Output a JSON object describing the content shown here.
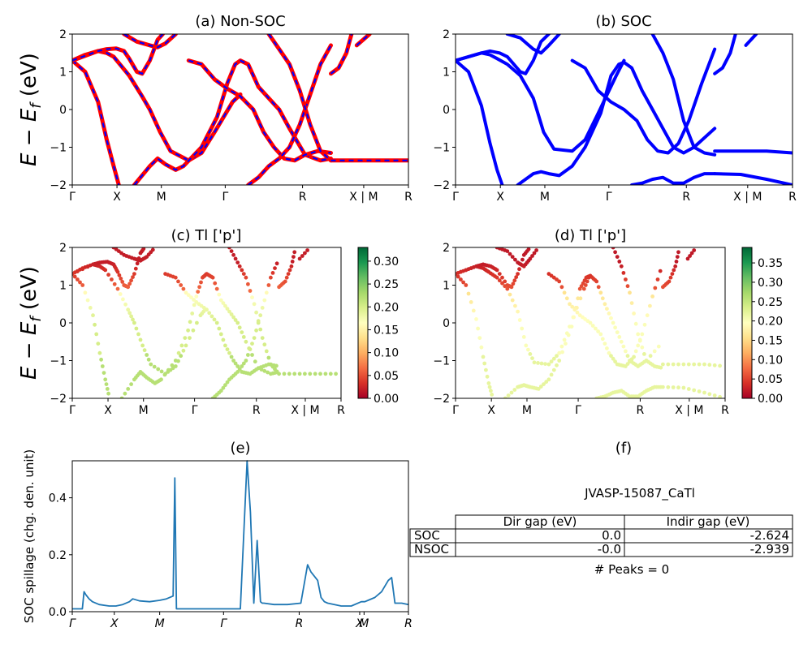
{
  "chart_data": [
    {
      "id": "a",
      "type": "line",
      "title": "(a) Non-SOC",
      "ylabel": "E - E_f (eV)",
      "ylim": [
        -2,
        2
      ],
      "yticks": [
        "2",
        "1",
        "0",
        "−1",
        "−2"
      ],
      "xticks": [
        "Γ",
        "X",
        "M",
        "Γ",
        "R",
        "X | M",
        "R"
      ],
      "colors": {
        "solid": "#ff0000",
        "dash": "#0000ff"
      },
      "series": [
        {
          "points": [
            [
              0,
              1.3
            ],
            [
              0.05,
              1.45
            ],
            [
              0.1,
              1.55
            ],
            [
              0.133,
              1.5
            ],
            [
              0.16,
              1.4
            ],
            [
              0.22,
              0.9
            ],
            [
              0.27,
              0.35
            ],
            [
              0.3,
              0.0
            ],
            [
              0.34,
              -0.6
            ],
            [
              0.38,
              -1.1
            ],
            [
              0.45,
              -1.35
            ],
            [
              0.5,
              -1.15
            ],
            [
              0.55,
              -0.6
            ],
            [
              0.62,
              0.2
            ],
            [
              0.65,
              0.4
            ]
          ]
        },
        {
          "points": [
            [
              0,
              1.3
            ],
            [
              0.05,
              1.0
            ],
            [
              0.1,
              0.2
            ],
            [
              0.133,
              -0.8
            ],
            [
              0.16,
              -1.5
            ],
            [
              0.18,
              -2.0
            ]
          ]
        },
        {
          "points": [
            [
              0,
              1.3
            ],
            [
              0.1,
              1.55
            ],
            [
              0.133,
              1.6
            ],
            [
              0.17,
              1.62
            ],
            [
              0.2,
              1.55
            ],
            [
              0.22,
              1.35
            ],
            [
              0.25,
              1.0
            ],
            [
              0.27,
              0.95
            ],
            [
              0.3,
              1.3
            ],
            [
              0.33,
              1.85
            ],
            [
              0.35,
              2.0
            ]
          ]
        },
        {
          "points": [
            [
              0.2,
              2.0
            ],
            [
              0.25,
              1.8
            ],
            [
              0.3,
              1.7
            ],
            [
              0.33,
              1.65
            ],
            [
              0.36,
              1.75
            ],
            [
              0.4,
              2.0
            ]
          ]
        },
        {
          "points": [
            [
              0.24,
              -2.0
            ],
            [
              0.3,
              -1.5
            ],
            [
              0.33,
              -1.3
            ],
            [
              0.36,
              -1.45
            ],
            [
              0.4,
              -1.6
            ],
            [
              0.43,
              -1.5
            ],
            [
              0.5,
              -1.0
            ],
            [
              0.56,
              -0.2
            ],
            [
              0.6,
              0.7
            ],
            [
              0.63,
              1.2
            ],
            [
              0.65,
              1.3
            ],
            [
              0.68,
              1.2
            ],
            [
              0.72,
              0.6
            ],
            [
              0.76,
              0.3
            ],
            [
              0.8,
              0.0
            ],
            [
              0.84,
              -0.5
            ],
            [
              0.9,
              -1.2
            ],
            [
              0.96,
              -1.35
            ],
            [
              1.0,
              -1.3
            ]
          ]
        },
        {
          "points": [
            [
              0.45,
              1.3
            ],
            [
              0.5,
              1.2
            ],
            [
              0.55,
              0.8
            ],
            [
              0.6,
              0.55
            ],
            [
              0.65,
              0.35
            ],
            [
              0.7,
              0.0
            ],
            [
              0.74,
              -0.6
            ],
            [
              0.78,
              -1.0
            ],
            [
              0.82,
              -1.3
            ],
            [
              0.86,
              -1.35
            ],
            [
              0.9,
              -1.2
            ],
            [
              0.95,
              -1.1
            ],
            [
              1.0,
              -1.15
            ]
          ]
        },
        {
          "points": [
            [
              0.68,
              -2.0
            ],
            [
              0.72,
              -1.8
            ],
            [
              0.76,
              -1.5
            ],
            [
              0.8,
              -1.3
            ],
            [
              0.84,
              -1.0
            ],
            [
              0.88,
              -0.4
            ],
            [
              0.92,
              0.4
            ],
            [
              0.96,
              1.2
            ],
            [
              1.0,
              1.7
            ]
          ]
        },
        {
          "points": [
            [
              0.76,
              2.0
            ],
            [
              0.8,
              1.6
            ],
            [
              0.84,
              1.2
            ],
            [
              0.88,
              0.5
            ],
            [
              0.92,
              -0.4
            ],
            [
              0.96,
              -1.1
            ],
            [
              1.0,
              -1.35
            ]
          ]
        },
        {
          "points": [
            [
              1.0,
              0.95
            ],
            [
              1.03,
              1.1
            ],
            [
              1.06,
              1.5
            ],
            [
              1.08,
              2.0
            ]
          ]
        },
        {
          "points": [
            [
              1.0,
              -1.35
            ],
            [
              1.1,
              -1.35
            ],
            [
              1.2,
              -1.35
            ],
            [
              1.3,
              -1.35
            ]
          ]
        },
        {
          "points": [
            [
              1.1,
              1.7
            ],
            [
              1.15,
              2.0
            ]
          ]
        }
      ]
    },
    {
      "id": "b",
      "type": "line",
      "title": "(b) SOC",
      "ylim": [
        -2,
        2
      ],
      "yticks": [
        "2",
        "1",
        "0",
        "−1",
        "−2"
      ],
      "xticks": [
        "Γ",
        "X",
        "M",
        "Γ",
        "R",
        "X | M",
        "R"
      ],
      "colors": {
        "line": "#0000ff"
      },
      "series": [
        {
          "points": [
            [
              0,
              1.3
            ],
            [
              0.05,
              1.4
            ],
            [
              0.1,
              1.5
            ],
            [
              0.133,
              1.45
            ],
            [
              0.16,
              1.35
            ],
            [
              0.2,
              1.2
            ],
            [
              0.25,
              0.9
            ],
            [
              0.3,
              0.3
            ],
            [
              0.34,
              -0.6
            ],
            [
              0.38,
              -1.05
            ],
            [
              0.45,
              -1.1
            ],
            [
              0.5,
              -0.8
            ],
            [
              0.55,
              -0.1
            ],
            [
              0.62,
              0.9
            ],
            [
              0.65,
              1.3
            ]
          ]
        },
        {
          "points": [
            [
              0,
              1.3
            ],
            [
              0.05,
              1.0
            ],
            [
              0.1,
              0.1
            ],
            [
              0.133,
              -0.9
            ],
            [
              0.16,
              -1.6
            ],
            [
              0.18,
              -2.0
            ]
          ]
        },
        {
          "points": [
            [
              0,
              1.3
            ],
            [
              0.1,
              1.5
            ],
            [
              0.133,
              1.55
            ],
            [
              0.17,
              1.5
            ],
            [
              0.2,
              1.4
            ],
            [
              0.25,
              1.0
            ],
            [
              0.27,
              0.95
            ],
            [
              0.3,
              1.3
            ],
            [
              0.33,
              1.8
            ],
            [
              0.36,
              2.0
            ]
          ]
        },
        {
          "points": [
            [
              0.2,
              2.0
            ],
            [
              0.25,
              1.9
            ],
            [
              0.3,
              1.6
            ],
            [
              0.33,
              1.5
            ],
            [
              0.36,
              1.7
            ],
            [
              0.4,
              2.0
            ]
          ]
        },
        {
          "points": [
            [
              0.24,
              -2.0
            ],
            [
              0.3,
              -1.7
            ],
            [
              0.33,
              -1.65
            ],
            [
              0.36,
              -1.7
            ],
            [
              0.4,
              -1.75
            ],
            [
              0.45,
              -1.5
            ],
            [
              0.5,
              -1.0
            ],
            [
              0.56,
              -0.1
            ],
            [
              0.6,
              0.9
            ],
            [
              0.63,
              1.2
            ],
            [
              0.65,
              1.25
            ],
            [
              0.68,
              1.1
            ],
            [
              0.72,
              0.5
            ],
            [
              0.76,
              0.0
            ],
            [
              0.8,
              -0.5
            ],
            [
              0.84,
              -1.0
            ],
            [
              0.88,
              -1.15
            ],
            [
              0.92,
              -1.0
            ],
            [
              1.0,
              -0.5
            ]
          ]
        },
        {
          "points": [
            [
              0.45,
              1.3
            ],
            [
              0.5,
              1.1
            ],
            [
              0.55,
              0.5
            ],
            [
              0.6,
              0.2
            ],
            [
              0.65,
              0.0
            ],
            [
              0.7,
              -0.3
            ],
            [
              0.74,
              -0.8
            ],
            [
              0.78,
              -1.1
            ],
            [
              0.82,
              -1.15
            ],
            [
              0.86,
              -0.9
            ],
            [
              0.9,
              -0.3
            ],
            [
              0.95,
              0.7
            ],
            [
              1.0,
              1.6
            ]
          ]
        },
        {
          "points": [
            [
              0.68,
              -2.0
            ],
            [
              0.72,
              -1.95
            ],
            [
              0.76,
              -1.85
            ],
            [
              0.8,
              -1.8
            ],
            [
              0.84,
              -1.95
            ],
            [
              0.88,
              -1.95
            ],
            [
              0.92,
              -1.8
            ],
            [
              0.96,
              -1.7
            ],
            [
              1.0,
              -1.7
            ]
          ]
        },
        {
          "points": [
            [
              0.76,
              2.0
            ],
            [
              0.8,
              1.5
            ],
            [
              0.84,
              0.8
            ],
            [
              0.88,
              -0.3
            ],
            [
              0.92,
              -1.0
            ],
            [
              0.96,
              -1.15
            ],
            [
              1.0,
              -1.2
            ]
          ]
        },
        {
          "points": [
            [
              1.0,
              0.95
            ],
            [
              1.03,
              1.1
            ],
            [
              1.06,
              1.5
            ],
            [
              1.08,
              2.0
            ]
          ]
        },
        {
          "points": [
            [
              1.0,
              -1.1
            ],
            [
              1.1,
              -1.1
            ],
            [
              1.2,
              -1.1
            ],
            [
              1.3,
              -1.15
            ]
          ]
        },
        {
          "points": [
            [
              1.0,
              -1.7
            ],
            [
              1.1,
              -1.72
            ],
            [
              1.2,
              -1.85
            ],
            [
              1.3,
              -2.0
            ]
          ]
        },
        {
          "points": [
            [
              1.12,
              1.7
            ],
            [
              1.16,
              2.0
            ]
          ]
        }
      ]
    },
    {
      "id": "c",
      "type": "scatter",
      "title": "(c)  Tl ['p']",
      "ylabel": "E - E_f (eV)",
      "ylim": [
        -2,
        2
      ],
      "yticks": [
        "2",
        "1",
        "0",
        "−1",
        "−2"
      ],
      "xticks": [
        "Γ",
        "X",
        "M",
        "Γ",
        "R",
        "X | M",
        "R"
      ],
      "colorbar": {
        "ticks": [
          "0.30",
          "0.25",
          "0.20",
          "0.15",
          "0.10",
          "0.05",
          "0.00"
        ],
        "vmax": 0.33
      }
    },
    {
      "id": "d",
      "type": "scatter",
      "title": "(d) Tl ['p']",
      "ylim": [
        -2,
        2
      ],
      "yticks": [
        "2",
        "1",
        "0",
        "−1",
        "−2"
      ],
      "xticks": [
        "Γ",
        "X",
        "M",
        "Γ",
        "R",
        "X | M",
        "R"
      ],
      "colorbar": {
        "ticks": [
          "0.35",
          "0.30",
          "0.25",
          "0.20",
          "0.15",
          "0.10",
          "0.05",
          "0.00"
        ],
        "vmax": 0.39
      }
    },
    {
      "id": "e",
      "type": "line",
      "title": "(e)",
      "ylabel": "SOC spillage (chg. den. unit)",
      "ylim": [
        0,
        0.53
      ],
      "yticks": [
        "0.4",
        "0.2",
        "0.0"
      ],
      "xticks": [
        "Γ",
        "X",
        "M",
        "Γ",
        "R",
        "X",
        "M",
        "R"
      ],
      "color": "#1f77b4",
      "x": [
        0.0,
        0.03,
        0.035,
        0.04,
        0.05,
        0.06,
        0.08,
        0.11,
        0.13,
        0.15,
        0.17,
        0.18,
        0.2,
        0.23,
        0.26,
        0.28,
        0.3,
        0.305,
        0.31,
        0.33,
        0.36,
        0.4,
        0.45,
        0.5,
        0.52,
        0.53,
        0.54,
        0.55,
        0.56,
        0.565,
        0.57,
        0.6,
        0.64,
        0.68,
        0.7,
        0.71,
        0.73,
        0.74,
        0.75,
        0.76,
        0.78,
        0.8,
        0.83,
        0.86,
        0.87,
        0.88,
        0.9,
        0.92,
        0.94,
        0.95,
        0.96,
        0.98,
        1.0
      ],
      "y": [
        0.01,
        0.01,
        0.07,
        0.06,
        0.045,
        0.035,
        0.025,
        0.02,
        0.02,
        0.025,
        0.035,
        0.045,
        0.038,
        0.035,
        0.04,
        0.045,
        0.055,
        0.47,
        0.01,
        0.01,
        0.01,
        0.01,
        0.01,
        0.01,
        0.53,
        0.35,
        0.03,
        0.25,
        0.035,
        0.03,
        0.03,
        0.025,
        0.025,
        0.03,
        0.165,
        0.14,
        0.11,
        0.05,
        0.035,
        0.03,
        0.025,
        0.02,
        0.02,
        0.035,
        0.035,
        0.04,
        0.05,
        0.07,
        0.11,
        0.12,
        0.03,
        0.03,
        0.025
      ]
    }
  ],
  "panel_f": {
    "title": "(f)",
    "jid": "JVASP-15087_CaTl",
    "headers": [
      "Dir gap (eV)",
      "Indir gap (eV)"
    ],
    "rows": [
      {
        "label": "SOC",
        "dir": "0.0",
        "indir": "-2.624"
      },
      {
        "label": "NSOC",
        "dir": "-0.0",
        "indir": "-2.939"
      }
    ],
    "peaks": "# Peaks = 0"
  }
}
